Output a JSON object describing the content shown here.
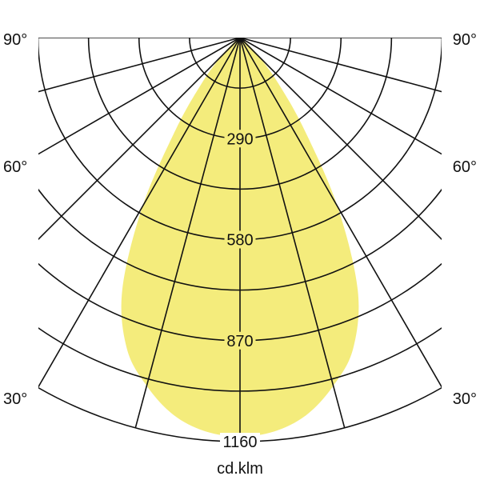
{
  "chart_data": {
    "type": "polar",
    "unit_label": "cd.klm",
    "radial_ticks": [
      290,
      580,
      870,
      1160
    ],
    "radial_max": 1160,
    "radial_grid_step": 145,
    "angle_grid_step_deg": 15,
    "angle_labels": [
      {
        "angle": 90,
        "text": "90°"
      },
      {
        "angle": 60,
        "text": "60°"
      },
      {
        "angle": 30,
        "text": "30°"
      }
    ],
    "fill_color": "#f4ec7c",
    "grid_color": "#111111",
    "series": [
      {
        "symmetric": true,
        "angles_deg": [
          0,
          5,
          10,
          15,
          20,
          25,
          30,
          35,
          40,
          45,
          50,
          55,
          60
        ],
        "intensity": [
          1145,
          1135,
          1100,
          1035,
          950,
          800,
          560,
          320,
          170,
          80,
          30,
          10,
          0
        ]
      }
    ]
  }
}
